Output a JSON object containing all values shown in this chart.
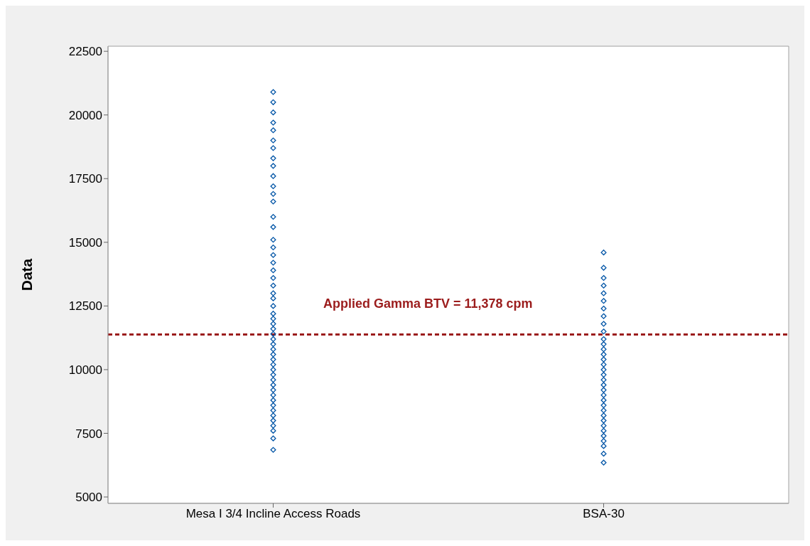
{
  "chart_data": {
    "type": "scatter",
    "ylabel": "Data",
    "categories": [
      "Mesa I 3/4 Incline Access Roads",
      "BSA-30"
    ],
    "series": [
      {
        "color": "#0054a6",
        "x": [
          "Mesa I 3/4 Incline Access Roads",
          "Mesa I 3/4 Incline Access Roads",
          "Mesa I 3/4 Incline Access Roads",
          "Mesa I 3/4 Incline Access Roads",
          "Mesa I 3/4 Incline Access Roads",
          "Mesa I 3/4 Incline Access Roads",
          "Mesa I 3/4 Incline Access Roads",
          "Mesa I 3/4 Incline Access Roads",
          "Mesa I 3/4 Incline Access Roads",
          "Mesa I 3/4 Incline Access Roads",
          "Mesa I 3/4 Incline Access Roads",
          "Mesa I 3/4 Incline Access Roads",
          "Mesa I 3/4 Incline Access Roads",
          "Mesa I 3/4 Incline Access Roads",
          "Mesa I 3/4 Incline Access Roads",
          "Mesa I 3/4 Incline Access Roads",
          "Mesa I 3/4 Incline Access Roads",
          "Mesa I 3/4 Incline Access Roads",
          "Mesa I 3/4 Incline Access Roads",
          "Mesa I 3/4 Incline Access Roads",
          "Mesa I 3/4 Incline Access Roads",
          "Mesa I 3/4 Incline Access Roads",
          "Mesa I 3/4 Incline Access Roads",
          "Mesa I 3/4 Incline Access Roads",
          "Mesa I 3/4 Incline Access Roads",
          "Mesa I 3/4 Incline Access Roads",
          "Mesa I 3/4 Incline Access Roads",
          "Mesa I 3/4 Incline Access Roads",
          "Mesa I 3/4 Incline Access Roads",
          "Mesa I 3/4 Incline Access Roads",
          "Mesa I 3/4 Incline Access Roads",
          "Mesa I 3/4 Incline Access Roads",
          "Mesa I 3/4 Incline Access Roads",
          "Mesa I 3/4 Incline Access Roads",
          "Mesa I 3/4 Incline Access Roads",
          "Mesa I 3/4 Incline Access Roads",
          "Mesa I 3/4 Incline Access Roads",
          "Mesa I 3/4 Incline Access Roads",
          "Mesa I 3/4 Incline Access Roads",
          "Mesa I 3/4 Incline Access Roads",
          "Mesa I 3/4 Incline Access Roads",
          "Mesa I 3/4 Incline Access Roads",
          "Mesa I 3/4 Incline Access Roads",
          "Mesa I 3/4 Incline Access Roads",
          "Mesa I 3/4 Incline Access Roads",
          "Mesa I 3/4 Incline Access Roads",
          "Mesa I 3/4 Incline Access Roads",
          "Mesa I 3/4 Incline Access Roads",
          "Mesa I 3/4 Incline Access Roads",
          "Mesa I 3/4 Incline Access Roads",
          "Mesa I 3/4 Incline Access Roads"
        ],
        "values": [
          6850,
          7300,
          7600,
          7800,
          8000,
          8200,
          8400,
          8600,
          8800,
          9000,
          9200,
          9400,
          9600,
          9800,
          10000,
          10200,
          10400,
          10600,
          10800,
          11000,
          11200,
          11400,
          11600,
          11800,
          12000,
          12200,
          12500,
          12800,
          13000,
          13300,
          13600,
          13900,
          14200,
          14500,
          14800,
          15100,
          15600,
          16000,
          16600,
          16900,
          17200,
          17600,
          18000,
          18300,
          18700,
          19000,
          19400,
          19700,
          20100,
          20500,
          20900
        ]
      },
      {
        "color": "#0054a6",
        "x": [
          "BSA-30",
          "BSA-30",
          "BSA-30",
          "BSA-30",
          "BSA-30",
          "BSA-30",
          "BSA-30",
          "BSA-30",
          "BSA-30",
          "BSA-30",
          "BSA-30",
          "BSA-30",
          "BSA-30",
          "BSA-30",
          "BSA-30",
          "BSA-30",
          "BSA-30",
          "BSA-30",
          "BSA-30",
          "BSA-30",
          "BSA-30",
          "BSA-30",
          "BSA-30",
          "BSA-30",
          "BSA-30",
          "BSA-30",
          "BSA-30",
          "BSA-30",
          "BSA-30",
          "BSA-30",
          "BSA-30",
          "BSA-30",
          "BSA-30",
          "BSA-30"
        ],
        "values": [
          6350,
          6700,
          7000,
          7200,
          7400,
          7600,
          7800,
          8000,
          8200,
          8400,
          8600,
          8800,
          9000,
          9200,
          9400,
          9600,
          9800,
          10000,
          10200,
          10400,
          10600,
          10800,
          11000,
          11200,
          11500,
          11800,
          12100,
          12400,
          12700,
          13000,
          13300,
          13600,
          14000,
          14600
        ]
      }
    ],
    "marker": "diamond",
    "ylim": [
      4750,
      22700
    ],
    "yticks": [
      5000,
      7500,
      10000,
      12500,
      15000,
      17500,
      20000,
      22500
    ],
    "ref_lines": [
      {
        "axis": "y",
        "value": 11378,
        "label": "Applied Gamma BTV = 11,378 cpm",
        "color": "#9b1c1c",
        "line_style": "dashed"
      }
    ],
    "grid": false,
    "legend": false
  }
}
